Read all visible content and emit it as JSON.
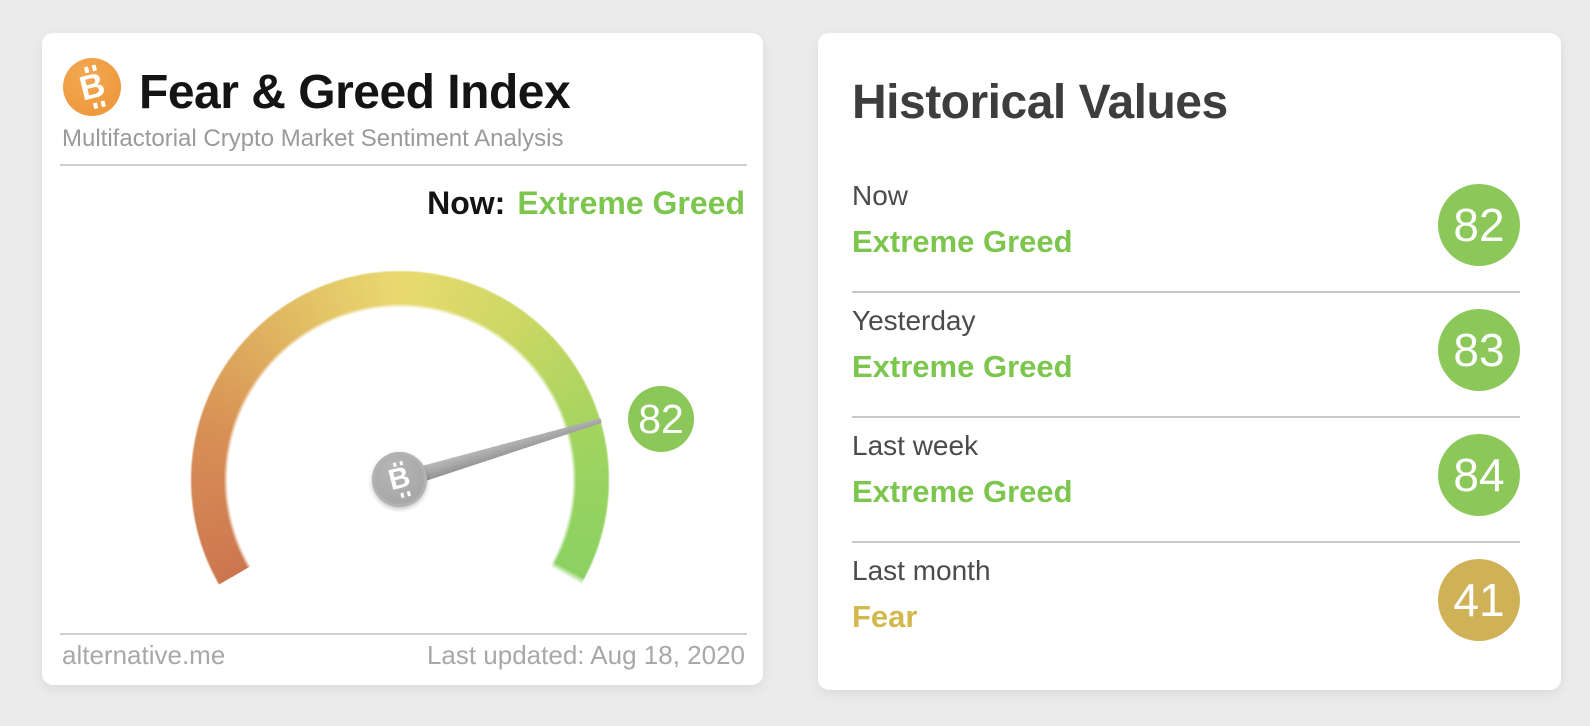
{
  "colors": {
    "page-bg": "#ebebeb",
    "bitcoin-orange": "#ee9a3f",
    "green-text": "#7dc64e",
    "green-badge": "#8bc859",
    "gold-badge": "#cfb257",
    "gold-text": "#d3b84d",
    "needle-gray": "#a5a5a5",
    "hub-gray": "#a7a7a7",
    "ring-0": "#cc7650",
    "ring-1": "#d89055",
    "ring-2": "#e9da70",
    "ring-3": "#9ed45f",
    "ring-4": "#8bd162"
  },
  "icons": {
    "bitcoin": "B"
  },
  "fng_card": {
    "title": "Fear & Greed Index",
    "subtitle": "Multifactorial Crypto Market Sentiment Analysis",
    "now_label": "Now:",
    "now_classification": "Extreme Greed",
    "gauge_badge": "82",
    "source": "alternative.me",
    "last_updated": "Last updated: Aug 18, 2020"
  },
  "historical_card": {
    "title": "Historical Values",
    "rows": [
      {
        "label": "Now",
        "classification": "Extreme Greed",
        "value": "82",
        "badge_color": "#8bc859",
        "text_color": "#7dc64e"
      },
      {
        "label": "Yesterday",
        "classification": "Extreme Greed",
        "value": "83",
        "badge_color": "#8bc859",
        "text_color": "#7dc64e"
      },
      {
        "label": "Last week",
        "classification": "Extreme Greed",
        "value": "84",
        "badge_color": "#8bc859",
        "text_color": "#7dc64e"
      },
      {
        "label": "Last month",
        "classification": "Fear",
        "value": "41",
        "badge_color": "#cfb257",
        "text_color": "#d3b84d"
      }
    ]
  },
  "chart_data": {
    "type": "gauge",
    "title": "Fear & Greed Index",
    "subtitle": "Multifactorial Crypto Market Sentiment Analysis",
    "value": 82,
    "min": 0,
    "max": 100,
    "classification": "Extreme Greed",
    "sweep_deg": 240,
    "needle_angle_above_horizontal_deg": 16.5,
    "gradient_stops": [
      "#cc7650",
      "#d89055",
      "#e9da70",
      "#9ed45f",
      "#8bd162"
    ],
    "scale_meaning": "red/left = Extreme Fear (0), yellow/top = Neutral (50), green/right = Extreme Greed (100)",
    "historical": [
      {
        "label": "Now",
        "value": 82,
        "classification": "Extreme Greed"
      },
      {
        "label": "Yesterday",
        "value": 83,
        "classification": "Extreme Greed"
      },
      {
        "label": "Last week",
        "value": 84,
        "classification": "Extreme Greed"
      },
      {
        "label": "Last month",
        "value": 41,
        "classification": "Fear"
      }
    ],
    "source": "alternative.me",
    "last_updated": "Aug 18, 2020"
  }
}
